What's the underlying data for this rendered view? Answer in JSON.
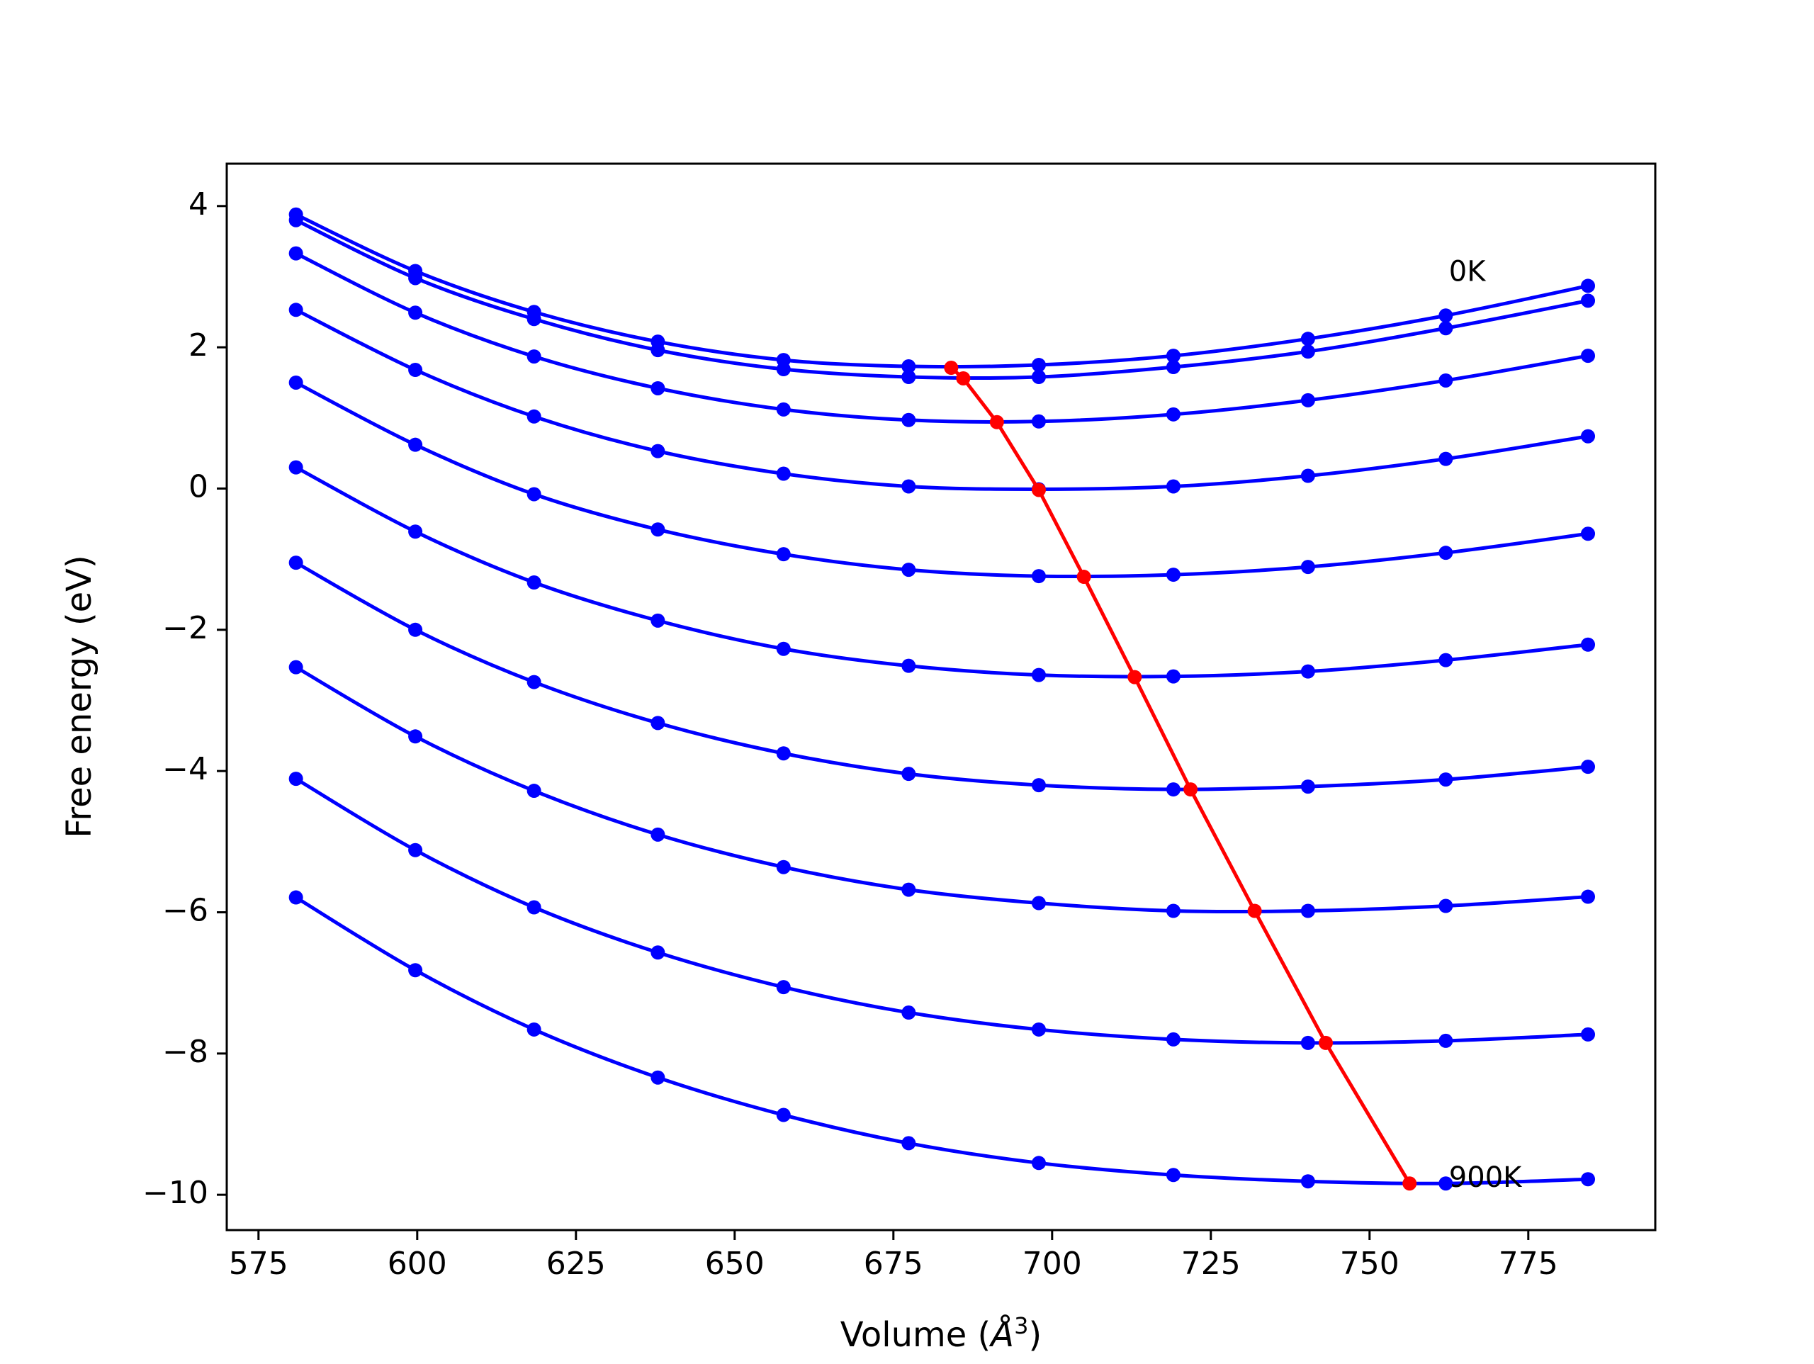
{
  "chart_data": {
    "type": "line",
    "title": "",
    "xlabel_main": "Volume (",
    "xlabel_unit": "Å",
    "xlabel_exp": "3",
    "xlabel_close": ")",
    "ylabel": "Free energy (eV)",
    "xlim": [
      570,
      795
    ],
    "ylim": [
      -10.5,
      4.6
    ],
    "xticks": [
      575,
      600,
      625,
      650,
      675,
      700,
      725,
      750,
      775
    ],
    "yticks": [
      4,
      2,
      0,
      -2,
      -4,
      -6,
      -8,
      -10
    ],
    "ytick_labels": [
      "4",
      "2",
      "0",
      "−2",
      "−4",
      "−6",
      "−8",
      "−10"
    ],
    "grid": false,
    "x": [
      580.9,
      599.7,
      618.4,
      637.9,
      657.7,
      677.4,
      697.9,
      719.1,
      740.3,
      762.0,
      784.4
    ],
    "series_color": "#0000ff",
    "series": [
      {
        "values": [
          3.88,
          3.08,
          2.5,
          2.08,
          1.82,
          1.73,
          1.75,
          1.88,
          2.12,
          2.45,
          2.87
        ]
      },
      {
        "values": [
          3.8,
          2.98,
          2.4,
          1.96,
          1.69,
          1.58,
          1.58,
          1.72,
          1.94,
          2.27,
          2.66
        ]
      },
      {
        "values": [
          3.33,
          2.49,
          1.87,
          1.42,
          1.12,
          0.97,
          0.95,
          1.05,
          1.25,
          1.53,
          1.88
        ]
      },
      {
        "values": [
          2.53,
          1.68,
          1.02,
          0.53,
          0.21,
          0.03,
          -0.01,
          0.03,
          0.18,
          0.42,
          0.74
        ]
      },
      {
        "values": [
          1.5,
          0.62,
          -0.08,
          -0.58,
          -0.93,
          -1.15,
          -1.24,
          -1.22,
          -1.11,
          -0.91,
          -0.64
        ]
      },
      {
        "values": [
          0.3,
          -0.61,
          -1.33,
          -1.87,
          -2.27,
          -2.51,
          -2.64,
          -2.66,
          -2.59,
          -2.43,
          -2.21
        ]
      },
      {
        "values": [
          -1.05,
          -2.0,
          -2.74,
          -3.32,
          -3.75,
          -4.04,
          -4.2,
          -4.26,
          -4.22,
          -4.12,
          -3.94
        ]
      },
      {
        "values": [
          -2.53,
          -3.51,
          -4.28,
          -4.9,
          -5.36,
          -5.68,
          -5.87,
          -5.98,
          -5.98,
          -5.91,
          -5.78
        ]
      },
      {
        "values": [
          -4.11,
          -5.12,
          -5.93,
          -6.57,
          -7.06,
          -7.42,
          -7.66,
          -7.8,
          -7.85,
          -7.82,
          -7.73
        ]
      },
      {
        "values": [
          -5.79,
          -6.82,
          -7.66,
          -8.34,
          -8.87,
          -9.27,
          -9.55,
          -9.72,
          -9.81,
          -9.84,
          -9.78
        ]
      }
    ],
    "minima_color": "#ff0000",
    "minima": {
      "x": [
        684.1,
        686.0,
        691.3,
        697.9,
        705.0,
        713.0,
        721.8,
        731.9,
        743.1,
        756.3
      ],
      "y": [
        1.71,
        1.56,
        0.94,
        -0.02,
        -1.25,
        -2.67,
        -4.26,
        -5.98,
        -7.85,
        -9.84
      ]
    },
    "annotations": [
      {
        "text": "0K",
        "x": 762.5,
        "y": 3.05
      },
      {
        "text": "900K",
        "x": 762.5,
        "y": -9.78
      }
    ]
  }
}
